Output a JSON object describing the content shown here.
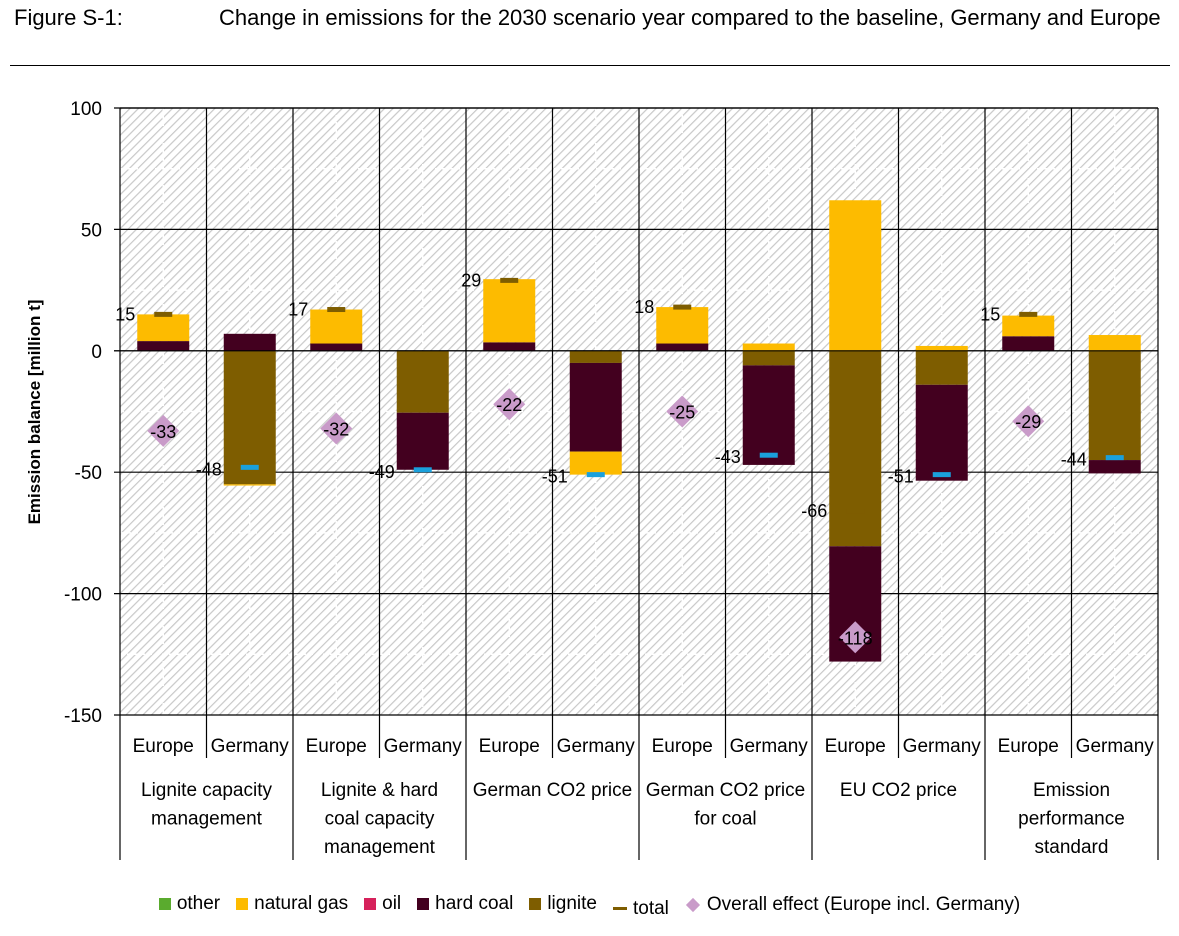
{
  "figure": {
    "label": "Figure S-1:",
    "title": "Change in emissions for the 2030 scenario year compared to the baseline, Germany and Europe"
  },
  "chart_data": {
    "type": "bar",
    "stacked": true,
    "title": "Change in emissions for the 2030 scenario year compared to the baseline, Germany and Europe",
    "xlabel": "",
    "ylabel": "Emission balance [million t]",
    "ylim": [
      -150,
      100
    ],
    "yticks": [
      100,
      50,
      0,
      -50,
      -100,
      -150
    ],
    "grid": true,
    "legend_position": "bottom",
    "groups": [
      "Lignite capacity management",
      "Lignite & hard coal capacity management",
      "German CO2 price",
      "German CO2 price for coal",
      "EU CO2 price",
      "Emission performance standard"
    ],
    "group_label_lines": [
      [
        "Lignite capacity",
        "management"
      ],
      [
        "Lignite & hard",
        "coal capacity",
        "management"
      ],
      [
        "German CO2 price"
      ],
      [
        "German CO2 price",
        "for coal"
      ],
      [
        "EU CO2 price"
      ],
      [
        "Emission",
        "performance",
        "standard"
      ]
    ],
    "categories": [
      "Europe",
      "Germany",
      "Europe",
      "Germany",
      "Europe",
      "Germany",
      "Europe",
      "Germany",
      "Europe",
      "Germany",
      "Europe",
      "Germany"
    ],
    "series": [
      {
        "name": "other",
        "color": "#5aab2e",
        "values": [
          0,
          0,
          0,
          0,
          0,
          0,
          0,
          0,
          0,
          0,
          0,
          0
        ]
      },
      {
        "name": "natural gas",
        "color": "#fdbb00",
        "values": [
          11,
          -0.5,
          14,
          0,
          26,
          -9.5,
          15,
          3,
          62,
          2,
          8.5,
          6.5
        ]
      },
      {
        "name": "oil",
        "color": "#d6215b",
        "values": [
          0,
          0,
          0,
          0,
          0,
          0,
          0,
          0,
          0,
          0,
          0,
          0
        ]
      },
      {
        "name": "hard coal",
        "color": "#43001f",
        "values": [
          4,
          7,
          3,
          -23.5,
          3.5,
          -36.5,
          3,
          -41,
          -47.5,
          -39.5,
          6,
          -5.5
        ]
      },
      {
        "name": "lignite",
        "color": "#7e5d00",
        "values": [
          0,
          -55,
          0,
          -25.5,
          0,
          -5,
          0,
          -6,
          -80.5,
          -14,
          0,
          -45
        ]
      }
    ],
    "totals": {
      "name": "total",
      "values": [
        15,
        -48,
        17,
        -49,
        29,
        -51,
        18,
        -43,
        -66,
        -51,
        15,
        -44
      ],
      "labels": [
        "15",
        "-48",
        "17",
        "-49",
        "29",
        "-51",
        "18",
        "-43",
        "-66",
        "-51",
        "15",
        "-44"
      ],
      "europe_marker_color": "#7e5d00",
      "germany_marker_color": "#1aa0dc"
    },
    "overall_effect": {
      "name": "Overall effect (Europe incl. Germany)",
      "color": "#c99bc9",
      "values": [
        -33,
        -32,
        -22,
        -25,
        -118,
        -29
      ],
      "labels": [
        "-33",
        "-32",
        "-22",
        "-25",
        "-118",
        "-29"
      ]
    },
    "legend": [
      {
        "label": "other",
        "type": "swatch",
        "color": "#5aab2e"
      },
      {
        "label": "natural gas",
        "type": "swatch",
        "color": "#fdbb00"
      },
      {
        "label": "oil",
        "type": "swatch",
        "color": "#d6215b"
      },
      {
        "label": "hard coal",
        "type": "swatch",
        "color": "#43001f"
      },
      {
        "label": "lignite",
        "type": "swatch",
        "color": "#7e5d00"
      },
      {
        "label": "total",
        "type": "line",
        "color": "#7e5d00"
      },
      {
        "label": "Overall effect (Europe incl. Germany)",
        "type": "diamond",
        "color": "#c99bc9"
      }
    ]
  }
}
